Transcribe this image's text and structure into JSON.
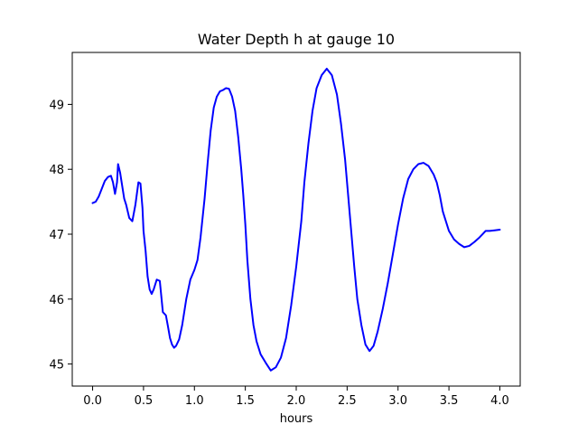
{
  "chart_data": {
    "type": "line",
    "title": "Water Depth h at gauge 10",
    "xlabel": "hours",
    "ylabel": "",
    "xlim": [
      -0.2,
      4.2
    ],
    "ylim": [
      44.66,
      49.8
    ],
    "xticks": [
      0.0,
      0.5,
      1.0,
      1.5,
      2.0,
      2.5,
      3.0,
      3.5,
      4.0
    ],
    "xtick_labels": [
      "0.0",
      "0.5",
      "1.0",
      "1.5",
      "2.0",
      "2.5",
      "3.0",
      "3.5",
      "4.0"
    ],
    "yticks": [
      45,
      46,
      47,
      48,
      49
    ],
    "ytick_labels": [
      "45",
      "46",
      "47",
      "48",
      "49"
    ],
    "grid": false,
    "series": [
      {
        "color": "#0000ff",
        "x": [
          0.0,
          0.03,
          0.06,
          0.09,
          0.12,
          0.15,
          0.18,
          0.2,
          0.22,
          0.24,
          0.25,
          0.27,
          0.29,
          0.31,
          0.33,
          0.36,
          0.39,
          0.42,
          0.45,
          0.47,
          0.49,
          0.5,
          0.52,
          0.54,
          0.56,
          0.58,
          0.6,
          0.63,
          0.66,
          0.69,
          0.72,
          0.74,
          0.76,
          0.78,
          0.8,
          0.82,
          0.85,
          0.88,
          0.92,
          0.96,
          1.0,
          1.03,
          1.06,
          1.1,
          1.13,
          1.16,
          1.19,
          1.22,
          1.25,
          1.28,
          1.31,
          1.34,
          1.37,
          1.4,
          1.43,
          1.46,
          1.48,
          1.5,
          1.52,
          1.55,
          1.58,
          1.61,
          1.65,
          1.7,
          1.75,
          1.8,
          1.85,
          1.9,
          1.95,
          2.0,
          2.05,
          2.08,
          2.12,
          2.16,
          2.2,
          2.25,
          2.3,
          2.35,
          2.4,
          2.44,
          2.48,
          2.51,
          2.54,
          2.57,
          2.6,
          2.64,
          2.68,
          2.72,
          2.76,
          2.8,
          2.85,
          2.9,
          2.95,
          3.0,
          3.05,
          3.1,
          3.15,
          3.2,
          3.25,
          3.3,
          3.35,
          3.38,
          3.41,
          3.44,
          3.47,
          3.5,
          3.55,
          3.6,
          3.65,
          3.7,
          3.75,
          3.8,
          3.83,
          3.86,
          3.9,
          3.95,
          4.0
        ],
        "y": [
          47.48,
          47.5,
          47.58,
          47.7,
          47.82,
          47.88,
          47.9,
          47.8,
          47.62,
          47.8,
          48.08,
          47.95,
          47.75,
          47.55,
          47.45,
          47.25,
          47.2,
          47.45,
          47.8,
          47.78,
          47.4,
          47.05,
          46.75,
          46.35,
          46.15,
          46.08,
          46.15,
          46.3,
          46.28,
          45.8,
          45.75,
          45.58,
          45.4,
          45.3,
          45.25,
          45.28,
          45.38,
          45.6,
          46.0,
          46.3,
          46.45,
          46.6,
          46.95,
          47.55,
          48.1,
          48.6,
          48.95,
          49.12,
          49.2,
          49.22,
          49.25,
          49.24,
          49.12,
          48.9,
          48.5,
          48.0,
          47.6,
          47.15,
          46.6,
          46.0,
          45.6,
          45.35,
          45.15,
          45.02,
          44.9,
          44.95,
          45.1,
          45.4,
          45.9,
          46.5,
          47.2,
          47.8,
          48.4,
          48.9,
          49.25,
          49.45,
          49.55,
          49.45,
          49.15,
          48.7,
          48.15,
          47.6,
          47.05,
          46.5,
          46.0,
          45.6,
          45.3,
          45.2,
          45.28,
          45.5,
          45.85,
          46.25,
          46.7,
          47.15,
          47.55,
          47.85,
          48.0,
          48.08,
          48.1,
          48.05,
          47.92,
          47.8,
          47.6,
          47.35,
          47.2,
          47.05,
          46.92,
          46.85,
          46.8,
          46.82,
          46.88,
          46.95,
          47.0,
          47.05,
          47.05,
          47.06,
          47.07
        ],
        "_note": "removed"
      }
    ]
  }
}
